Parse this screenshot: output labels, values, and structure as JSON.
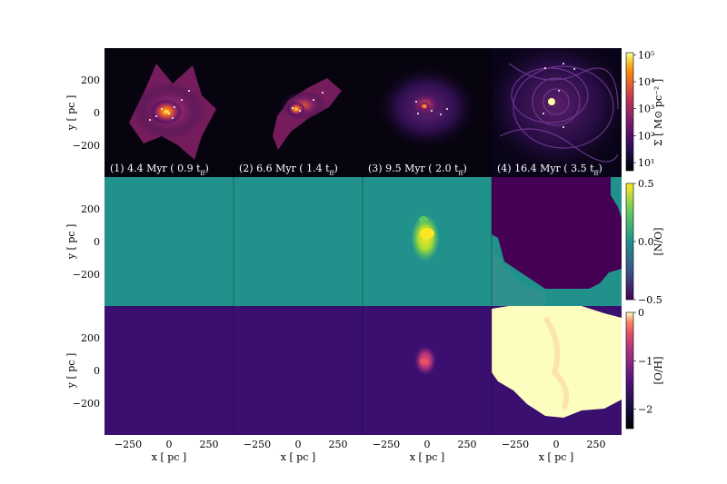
{
  "chart_data": {
    "type": "heatmap",
    "description_rows": [
      "Sigma",
      "N/O",
      "O/H"
    ],
    "snapshots": [
      {
        "label": "(1) 4.4 Myr ( 0.9 t",
        "ff": "ff",
        "suffix": ")"
      },
      {
        "label": "(2) 6.6 Myr ( 1.4 t",
        "ff": "ff",
        "suffix": ")"
      },
      {
        "label": "(3) 9.5 Myr ( 2.0 t",
        "ff": "ff",
        "suffix": ")"
      },
      {
        "label": "(4) 16.4 Myr ( 3.5 t",
        "ff": "ff",
        "suffix": ")"
      }
    ],
    "xlabel": "x [ pc ]",
    "ylabel": "y [ pc ]",
    "xlim": [
      -400,
      400
    ],
    "ylim": [
      -400,
      400
    ],
    "xticks": [
      "−250",
      "0",
      "250"
    ],
    "xtick_values": [
      -250,
      0,
      250
    ],
    "yticks": [
      "200",
      "0",
      "−200"
    ],
    "ytick_values": [
      200,
      0,
      -200
    ],
    "colorbars": [
      {
        "name": "sigma",
        "label": "Σ [ M⊙ pc⁻² ]",
        "scale": "log",
        "ticks": [
          "10⁵",
          "10⁴",
          "10³",
          "10²",
          "10¹"
        ],
        "tick_values": [
          100000,
          10000,
          1000,
          100,
          10
        ],
        "range": [
          5,
          120000
        ],
        "cmap": "inferno"
      },
      {
        "name": "n_o",
        "label": "[N/O]",
        "scale": "linear",
        "ticks": [
          "0.5",
          "0.0",
          "−0.5"
        ],
        "tick_values": [
          0.5,
          0.0,
          -0.5
        ],
        "range": [
          -0.5,
          0.5
        ],
        "cmap": "viridis"
      },
      {
        "name": "o_h",
        "label": "[O/H]",
        "scale": "linear",
        "ticks": [
          "0",
          "−1",
          "−2"
        ],
        "tick_values": [
          0,
          -1,
          -2
        ],
        "range": [
          -2.4,
          0
        ],
        "cmap": "magma"
      }
    ]
  },
  "colors": {
    "sigma_bg": "#07030f",
    "no_bg": "#21918c",
    "no_low": "#440154",
    "no_high": "#fde725",
    "oh_bg": "#3b0f70",
    "oh_high": "#fcfdbf"
  }
}
